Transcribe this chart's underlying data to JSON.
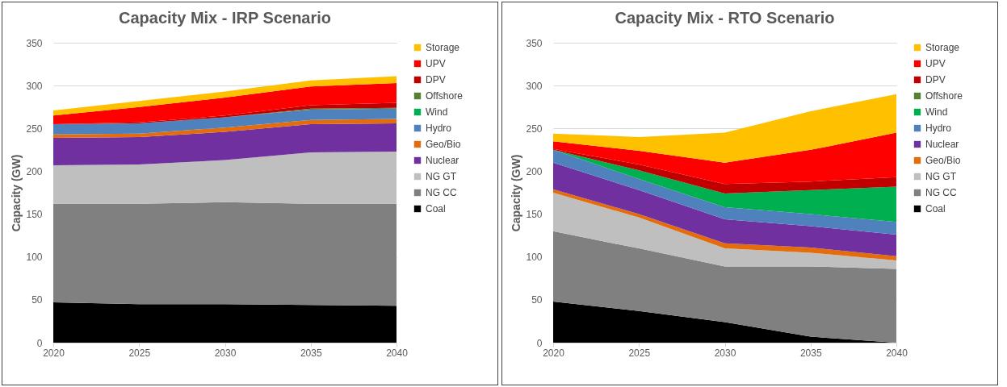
{
  "chart_data": [
    {
      "type": "area",
      "title": "Capacity Mix - IRP Scenario",
      "ylabel": "Capacity (GW)",
      "x": [
        2020,
        2025,
        2030,
        2035,
        2040
      ],
      "xlim": [
        2020,
        2040
      ],
      "xticks": [
        2020,
        2025,
        2030,
        2035,
        2040
      ],
      "ylim": [
        0,
        350
      ],
      "yticks": [
        0,
        50,
        100,
        150,
        200,
        250,
        300,
        350
      ],
      "stacked": true,
      "grid": "y",
      "legend": "right",
      "series": [
        {
          "name": "Coal",
          "color": "#000000",
          "values": [
            47,
            45,
            45,
            44,
            43
          ]
        },
        {
          "name": "NG CC",
          "color": "#808080",
          "values": [
            115,
            117,
            119,
            118,
            119
          ]
        },
        {
          "name": "NG GT",
          "color": "#bfbfbf",
          "values": [
            45,
            46,
            49,
            60,
            61
          ]
        },
        {
          "name": "Nuclear",
          "color": "#7030a0",
          "values": [
            32,
            32,
            33,
            33,
            33
          ]
        },
        {
          "name": "Geo/Bio",
          "color": "#e46c0a",
          "values": [
            4,
            4,
            5,
            5,
            5
          ]
        },
        {
          "name": "Hydro",
          "color": "#4f81bd",
          "values": [
            12,
            12,
            12,
            12,
            12
          ]
        },
        {
          "name": "Wind",
          "color": "#00b050",
          "values": [
            null,
            null,
            null,
            null,
            null
          ]
        },
        {
          "name": "Offshore",
          "color": "#548235",
          "values": [
            0,
            0,
            0,
            1,
            1
          ]
        },
        {
          "name": "DPV",
          "color": "#c00000",
          "values": [
            0,
            1,
            2,
            4,
            6
          ]
        },
        {
          "name": "UPV",
          "color": "#ff0000",
          "values": [
            10,
            18,
            21,
            22,
            23
          ]
        },
        {
          "name": "Storage",
          "color": "#ffc000",
          "values": [
            6,
            7,
            7,
            7,
            8
          ]
        }
      ]
    },
    {
      "type": "area",
      "title": "Capacity Mix - RTO Scenario",
      "ylabel": "Capacity (GW)",
      "x": [
        2020,
        2025,
        2030,
        2035,
        2040
      ],
      "xlim": [
        2020,
        2040
      ],
      "xticks": [
        2020,
        2025,
        2030,
        2035,
        2040
      ],
      "ylim": [
        0,
        350
      ],
      "yticks": [
        0,
        50,
        100,
        150,
        200,
        250,
        300,
        350
      ],
      "stacked": true,
      "grid": "y",
      "legend": "right",
      "series": [
        {
          "name": "Coal",
          "color": "#000000",
          "values": [
            48,
            37,
            24,
            7,
            0
          ]
        },
        {
          "name": "NG CC",
          "color": "#808080",
          "values": [
            82,
            73,
            65,
            82,
            86
          ]
        },
        {
          "name": "NG GT",
          "color": "#bfbfbf",
          "values": [
            45,
            36,
            21,
            16,
            10
          ]
        },
        {
          "name": "Geo/Bio",
          "color": "#e46c0a",
          "values": [
            4,
            4,
            6,
            6,
            5
          ]
        },
        {
          "name": "Nuclear",
          "color": "#7030a0",
          "values": [
            31,
            28,
            28,
            25,
            25
          ]
        },
        {
          "name": "Hydro",
          "color": "#4f81bd",
          "values": [
            15,
            13,
            14,
            14,
            15
          ]
        },
        {
          "name": "Wind",
          "color": "#00b050",
          "values": [
            0,
            10,
            16,
            28,
            41
          ]
        },
        {
          "name": "Offshore",
          "color": "#548235",
          "values": [
            null,
            null,
            null,
            null,
            null
          ]
        },
        {
          "name": "DPV",
          "color": "#c00000",
          "values": [
            1,
            7,
            11,
            10,
            11
          ]
        },
        {
          "name": "UPV",
          "color": "#ff0000",
          "values": [
            9,
            16,
            25,
            37,
            52
          ]
        },
        {
          "name": "Storage",
          "color": "#ffc000",
          "values": [
            9,
            16,
            35,
            45,
            45
          ]
        }
      ]
    }
  ]
}
